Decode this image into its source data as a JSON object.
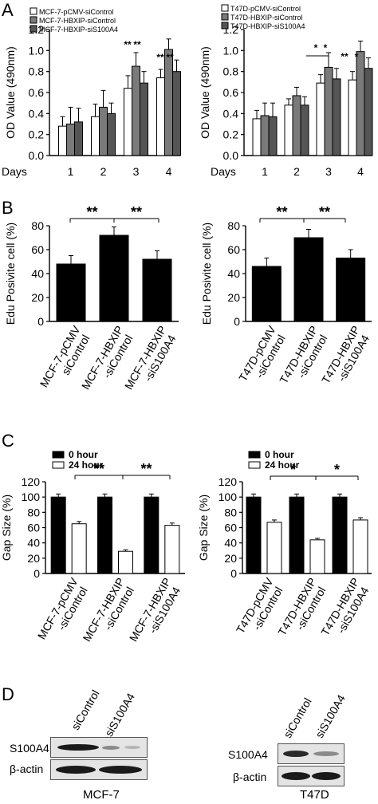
{
  "panels": {
    "A": "A",
    "B": "B",
    "C": "C",
    "D": "D"
  },
  "chart_data": [
    {
      "id": "A-left",
      "type": "bar",
      "ylabel": "OD Value (490nm)",
      "xlabel": "Days",
      "ylim": [
        0,
        1.2
      ],
      "yticks": [
        0,
        0.2,
        0.4,
        0.6,
        0.8,
        1.0,
        1.2
      ],
      "categories": [
        "1",
        "2",
        "3",
        "4"
      ],
      "legend_placement": "top-left",
      "series": [
        {
          "name": "MCF-7-pCMV-siControl",
          "color": "#ffffff",
          "values": [
            0.28,
            0.37,
            0.64,
            0.74
          ],
          "errors": [
            0.09,
            0.12,
            0.12,
            0.08
          ]
        },
        {
          "name": "MCF-7-HBXIP-siControl",
          "color": "#7a7a7a",
          "values": [
            0.3,
            0.46,
            0.85,
            1.01
          ],
          "errors": [
            0.16,
            0.16,
            0.13,
            0.1
          ]
        },
        {
          "name": "MCF-7-HBXIP-siS100A4",
          "color": "#555555",
          "values": [
            0.32,
            0.4,
            0.69,
            0.8
          ],
          "errors": [
            0.13,
            0.1,
            0.11,
            0.11
          ]
        }
      ],
      "annotations": [
        "**",
        "**",
        "**",
        "**"
      ]
    },
    {
      "id": "A-right",
      "type": "bar",
      "ylabel": "OD Value (490nm)",
      "xlabel": "Days",
      "ylim": [
        0,
        1.2
      ],
      "yticks": [
        0,
        0.2,
        0.4,
        0.6,
        0.8,
        1.0,
        1.2
      ],
      "categories": [
        "1",
        "2",
        "3",
        "4"
      ],
      "legend_placement": "top-left",
      "series": [
        {
          "name": "T47D-pCMV-siControl",
          "color": "#ffffff",
          "values": [
            0.35,
            0.48,
            0.69,
            0.72
          ],
          "errors": [
            0.08,
            0.06,
            0.08,
            0.08
          ]
        },
        {
          "name": "T47D-HBXIP-siControl",
          "color": "#7a7a7a",
          "values": [
            0.38,
            0.57,
            0.84,
            0.99
          ],
          "errors": [
            0.12,
            0.08,
            0.14,
            0.1
          ]
        },
        {
          "name": "T47D-HBXIP-siS100A4",
          "color": "#555555",
          "values": [
            0.37,
            0.48,
            0.73,
            0.83
          ],
          "errors": [
            0.13,
            0.08,
            0.1,
            0.1
          ]
        }
      ],
      "annotations": [
        "*",
        "*",
        "**",
        "*"
      ]
    },
    {
      "id": "B-left",
      "type": "bar",
      "ylabel": "Edu Posivite cell (%)",
      "ylim": [
        0,
        80
      ],
      "yticks": [
        0,
        20,
        40,
        60,
        80
      ],
      "categories": [
        "MCF-7-pCMV\nsiControl",
        "MCF-7-HBXIP\n-siControl",
        "MCF-7-HBXIP\n-siS100A4"
      ],
      "series": [
        {
          "color": "#000000",
          "values": [
            48,
            72,
            52
          ],
          "errors": [
            7,
            7,
            7
          ]
        }
      ],
      "annotations": [
        "**",
        "**"
      ]
    },
    {
      "id": "B-right",
      "type": "bar",
      "ylabel": "Edu Posivite cell (%)",
      "ylim": [
        0,
        80
      ],
      "yticks": [
        0,
        20,
        40,
        60,
        80
      ],
      "categories": [
        "T47D-pCMV\n-siControl",
        "T47D-HBXIP\n-siControl",
        "T47D-HBXIP\n-siS100A4"
      ],
      "series": [
        {
          "color": "#000000",
          "values": [
            46,
            70,
            53
          ],
          "errors": [
            7,
            7,
            7
          ]
        }
      ],
      "annotations": [
        "**",
        "**"
      ]
    },
    {
      "id": "C-left",
      "type": "bar",
      "ylabel": "Gap Size (%)",
      "ylim": [
        0,
        120
      ],
      "yticks": [
        0,
        20,
        40,
        60,
        80,
        100,
        120
      ],
      "categories": [
        "MCF-7-pCMV\n-siControl",
        "MCF-7-HBXIP\n-siControl",
        "MCF-7-HBXIP\n-siS100A4"
      ],
      "legend_placement": "top-left",
      "series": [
        {
          "name": "0  hour",
          "color": "#000000",
          "values": [
            100,
            100,
            100
          ],
          "errors": [
            4,
            4,
            4
          ]
        },
        {
          "name": "24 hour",
          "color": "#ffffff",
          "values": [
            65,
            29,
            63
          ],
          "errors": [
            3,
            2,
            3
          ]
        }
      ],
      "annotations": [
        "**",
        "**"
      ]
    },
    {
      "id": "C-right",
      "type": "bar",
      "ylabel": "Gap Size (%)",
      "ylim": [
        0,
        120
      ],
      "yticks": [
        0,
        20,
        40,
        60,
        80,
        100,
        120
      ],
      "categories": [
        "T47D-pCMV\n-siControl",
        "T47D-HBXIP\n-siControl",
        "T47D-HBXIP\n-siS100A4"
      ],
      "legend_placement": "top-left",
      "series": [
        {
          "name": "0  hour",
          "color": "#000000",
          "values": [
            100,
            100,
            100
          ],
          "errors": [
            4,
            4,
            4
          ]
        },
        {
          "name": "24 hour",
          "color": "#ffffff",
          "values": [
            67,
            44,
            70
          ],
          "errors": [
            3,
            2,
            3
          ]
        }
      ],
      "annotations": [
        "*",
        "*"
      ]
    }
  ],
  "western": {
    "left": {
      "lanes": [
        "siControl",
        "siS100A4"
      ],
      "rows": [
        "S100A4",
        "β-actin"
      ],
      "cell_line": "MCF-7"
    },
    "right": {
      "lanes": [
        "siControl",
        "siS100A4"
      ],
      "rows": [
        "S100A4",
        "β-actin"
      ],
      "cell_line": "T47D"
    }
  }
}
